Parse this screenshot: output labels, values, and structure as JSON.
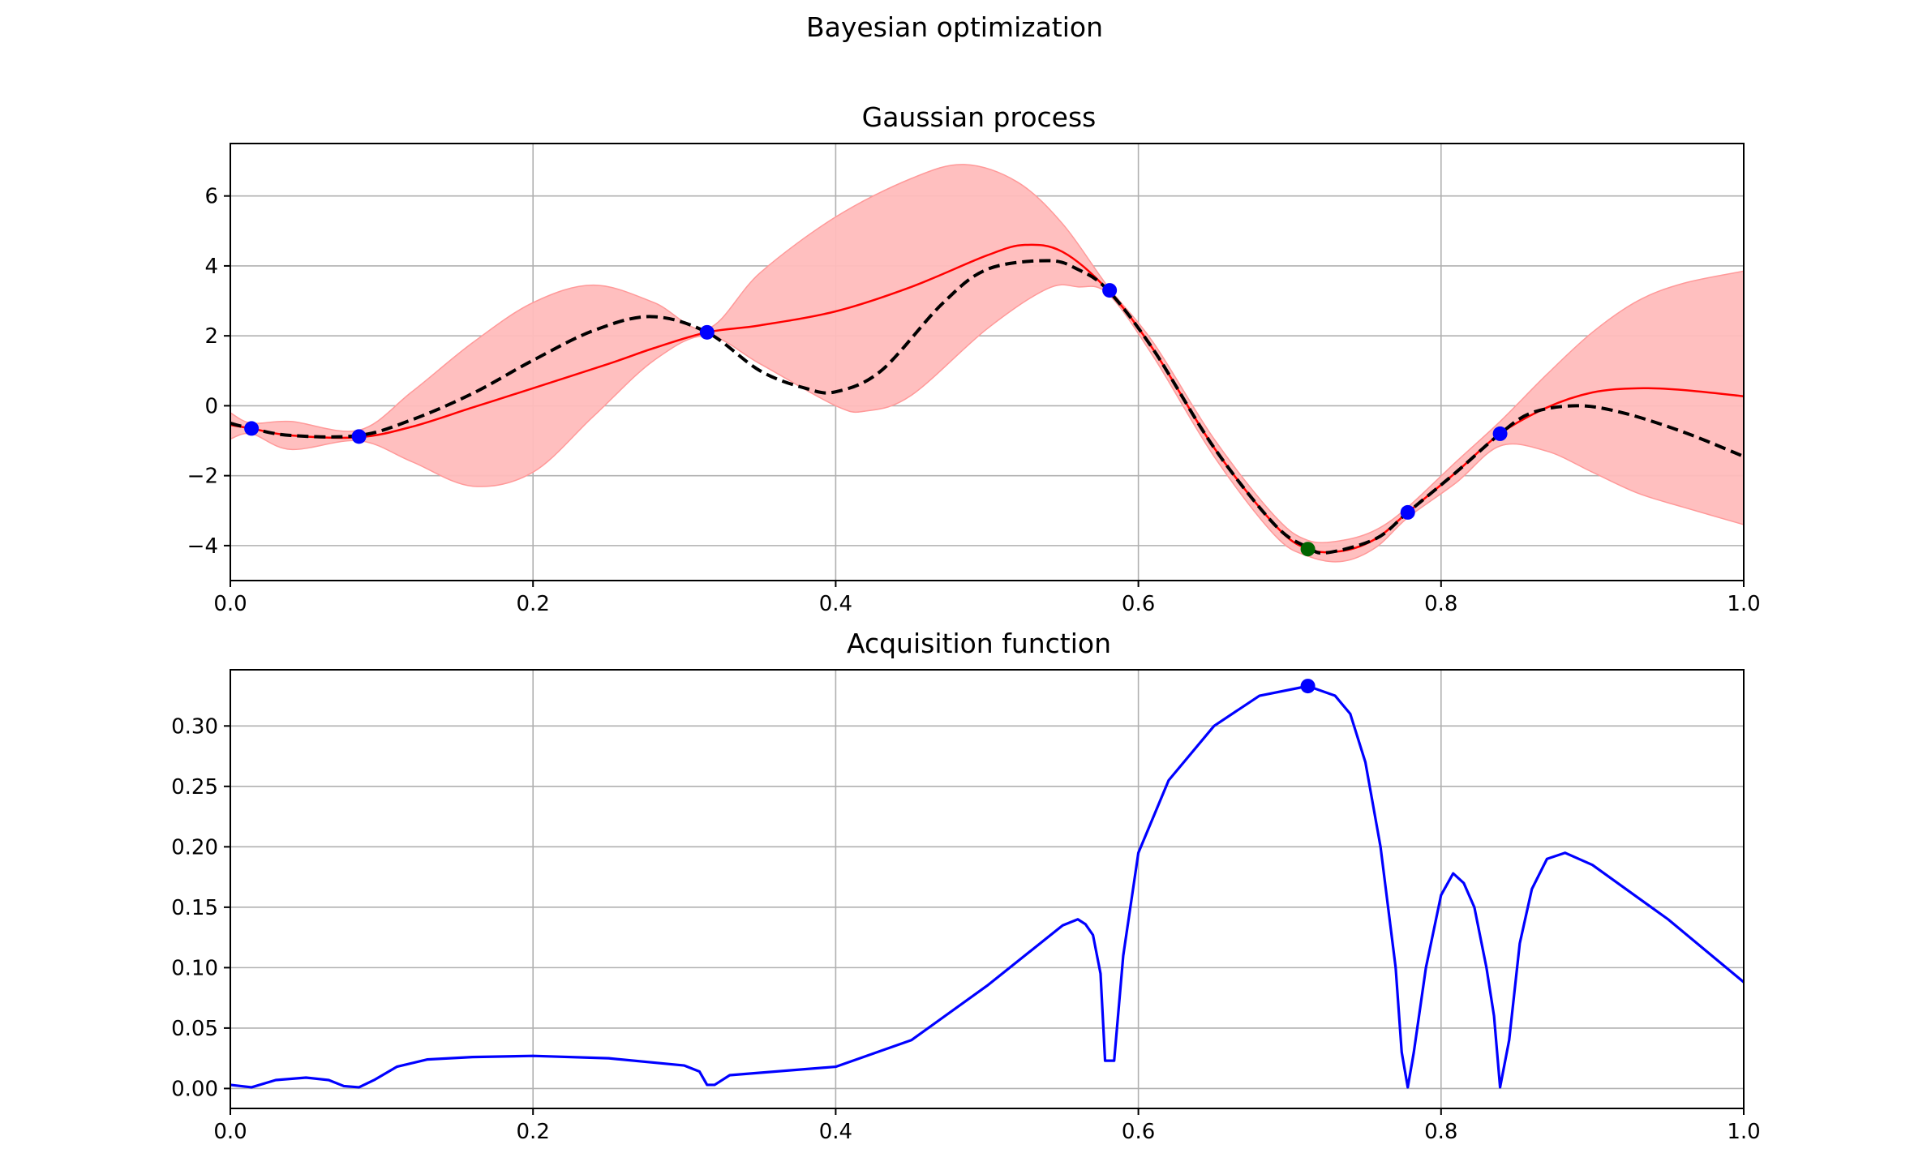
{
  "figure": {
    "suptitle": "Bayesian optimization"
  },
  "chart_data": [
    {
      "type": "line",
      "title": "Gaussian process",
      "xlabel": "",
      "ylabel": "",
      "xlim": [
        0.0,
        1.0
      ],
      "ylim": [
        -5.0,
        7.5
      ],
      "grid": true,
      "x_ticks": [
        0.0,
        0.2,
        0.4,
        0.6,
        0.8,
        1.0
      ],
      "x_tick_labels": [
        "0.0",
        "0.2",
        "0.4",
        "0.6",
        "0.8",
        "1.0"
      ],
      "y_ticks": [
        -4,
        -2,
        0,
        2,
        4,
        6
      ],
      "y_tick_labels": [
        "−4",
        "−2",
        "0",
        "2",
        "4",
        "6"
      ],
      "colors": {
        "mean": "#ff0000",
        "band": "#ffbcbc",
        "band_edge": "#ff9999",
        "truth": "#000000",
        "observed": "#0000ff",
        "best": "#006400"
      },
      "series": [
        {
          "kind": "mean",
          "x": [
            0.0,
            0.014,
            0.04,
            0.085,
            0.12,
            0.16,
            0.2,
            0.25,
            0.28,
            0.315,
            0.35,
            0.4,
            0.45,
            0.5,
            0.525,
            0.55,
            0.58,
            0.61,
            0.65,
            0.69,
            0.712,
            0.735,
            0.757,
            0.778,
            0.81,
            0.839,
            0.87,
            0.9,
            0.93,
            0.96,
            1.0
          ],
          "y": [
            -0.55,
            -0.65,
            -0.85,
            -0.9,
            -0.6,
            -0.05,
            0.5,
            1.2,
            1.65,
            2.1,
            2.3,
            2.7,
            3.4,
            4.3,
            4.6,
            4.4,
            3.3,
            1.6,
            -1.2,
            -3.4,
            -4.1,
            -4.15,
            -3.8,
            -3.05,
            -1.9,
            -0.8,
            -0.05,
            0.38,
            0.5,
            0.45,
            0.27
          ]
        },
        {
          "kind": "band_upper",
          "x": [
            0.0,
            0.014,
            0.04,
            0.085,
            0.12,
            0.16,
            0.2,
            0.24,
            0.28,
            0.315,
            0.35,
            0.4,
            0.45,
            0.485,
            0.52,
            0.55,
            0.58,
            0.61,
            0.65,
            0.69,
            0.712,
            0.735,
            0.757,
            0.778,
            0.81,
            0.839,
            0.87,
            0.9,
            0.93,
            0.96,
            1.0
          ],
          "y": [
            -0.2,
            -0.5,
            -0.45,
            -0.7,
            0.4,
            1.8,
            2.95,
            3.45,
            2.95,
            2.2,
            3.8,
            5.4,
            6.5,
            6.9,
            6.4,
            5.2,
            3.4,
            1.8,
            -0.95,
            -3.15,
            -3.85,
            -3.85,
            -3.55,
            -2.9,
            -1.6,
            -0.45,
            0.9,
            2.1,
            3.0,
            3.5,
            3.85
          ]
        },
        {
          "kind": "band_lower",
          "x": [
            0.0,
            0.014,
            0.04,
            0.085,
            0.12,
            0.16,
            0.2,
            0.24,
            0.28,
            0.315,
            0.35,
            0.4,
            0.42,
            0.45,
            0.5,
            0.54,
            0.56,
            0.58,
            0.61,
            0.65,
            0.69,
            0.712,
            0.735,
            0.757,
            0.778,
            0.81,
            0.839,
            0.87,
            0.9,
            0.93,
            0.96,
            1.0
          ],
          "y": [
            -0.95,
            -0.8,
            -1.25,
            -1.0,
            -1.6,
            -2.3,
            -1.9,
            -0.3,
            1.3,
            2.0,
            1.2,
            0.0,
            -0.15,
            0.3,
            2.2,
            3.35,
            3.4,
            3.2,
            1.4,
            -1.45,
            -3.7,
            -4.3,
            -4.45,
            -4.05,
            -3.2,
            -2.2,
            -1.15,
            -1.3,
            -1.9,
            -2.5,
            -2.9,
            -3.4
          ]
        },
        {
          "kind": "truth",
          "x": [
            0.0,
            0.014,
            0.04,
            0.085,
            0.12,
            0.16,
            0.2,
            0.24,
            0.278,
            0.315,
            0.35,
            0.38,
            0.4,
            0.43,
            0.47,
            0.5,
            0.54,
            0.56,
            0.58,
            0.61,
            0.65,
            0.69,
            0.712,
            0.725,
            0.757,
            0.778,
            0.81,
            0.839,
            0.86,
            0.89,
            0.92,
            0.96,
            1.0
          ],
          "y": [
            -0.5,
            -0.65,
            -0.85,
            -0.85,
            -0.4,
            0.35,
            1.3,
            2.15,
            2.55,
            2.1,
            1.0,
            0.5,
            0.4,
            1.0,
            2.9,
            3.9,
            4.15,
            3.9,
            3.3,
            1.6,
            -1.2,
            -3.4,
            -4.05,
            -4.2,
            -3.8,
            -3.05,
            -1.9,
            -0.8,
            -0.2,
            0.0,
            -0.2,
            -0.75,
            -1.45
          ]
        }
      ],
      "observations": {
        "x": [
          0.014,
          0.085,
          0.315,
          0.581,
          0.778,
          0.839
        ],
        "y": [
          -0.65,
          -0.88,
          2.1,
          3.3,
          -3.05,
          -0.8
        ]
      },
      "best_observation": {
        "x": 0.712,
        "y": -4.1
      }
    },
    {
      "type": "line",
      "title": "Acquisition function",
      "xlabel": "",
      "ylabel": "",
      "xlim": [
        0.0,
        1.0
      ],
      "ylim": [
        -0.0165,
        0.3465
      ],
      "grid": true,
      "x_ticks": [
        0.0,
        0.2,
        0.4,
        0.6,
        0.8,
        1.0
      ],
      "x_tick_labels": [
        "0.0",
        "0.2",
        "0.4",
        "0.6",
        "0.8",
        "1.0"
      ],
      "y_ticks": [
        0.0,
        0.05,
        0.1,
        0.15,
        0.2,
        0.25,
        0.3
      ],
      "y_tick_labels": [
        "0.00",
        "0.05",
        "0.10",
        "0.15",
        "0.20",
        "0.25",
        "0.30"
      ],
      "colors": {
        "line": "#0000ff",
        "marker": "#0000ff"
      },
      "series": [
        {
          "kind": "acquisition",
          "x": [
            0.0,
            0.014,
            0.03,
            0.05,
            0.065,
            0.075,
            0.085,
            0.095,
            0.11,
            0.13,
            0.16,
            0.2,
            0.25,
            0.3,
            0.31,
            0.315,
            0.32,
            0.33,
            0.35,
            0.4,
            0.45,
            0.5,
            0.55,
            0.56,
            0.565,
            0.57,
            0.575,
            0.578,
            0.584,
            0.59,
            0.6,
            0.62,
            0.65,
            0.68,
            0.712,
            0.73,
            0.74,
            0.75,
            0.76,
            0.77,
            0.774,
            0.778,
            0.782,
            0.79,
            0.8,
            0.808,
            0.815,
            0.822,
            0.83,
            0.835,
            0.839,
            0.845,
            0.852,
            0.86,
            0.87,
            0.882,
            0.9,
            0.95,
            1.0
          ],
          "y": [
            0.003,
            0.001,
            0.007,
            0.009,
            0.007,
            0.002,
            0.001,
            0.007,
            0.018,
            0.024,
            0.026,
            0.027,
            0.025,
            0.019,
            0.014,
            0.003,
            0.003,
            0.011,
            0.013,
            0.018,
            0.04,
            0.085,
            0.135,
            0.14,
            0.136,
            0.127,
            0.095,
            0.023,
            0.023,
            0.11,
            0.195,
            0.255,
            0.3,
            0.325,
            0.333,
            0.325,
            0.31,
            0.27,
            0.2,
            0.1,
            0.03,
            0.001,
            0.03,
            0.1,
            0.16,
            0.178,
            0.17,
            0.15,
            0.1,
            0.06,
            0.001,
            0.04,
            0.12,
            0.165,
            0.19,
            0.195,
            0.185,
            0.14,
            0.088
          ]
        }
      ],
      "marker": {
        "x": 0.712,
        "y": 0.333
      }
    }
  ]
}
